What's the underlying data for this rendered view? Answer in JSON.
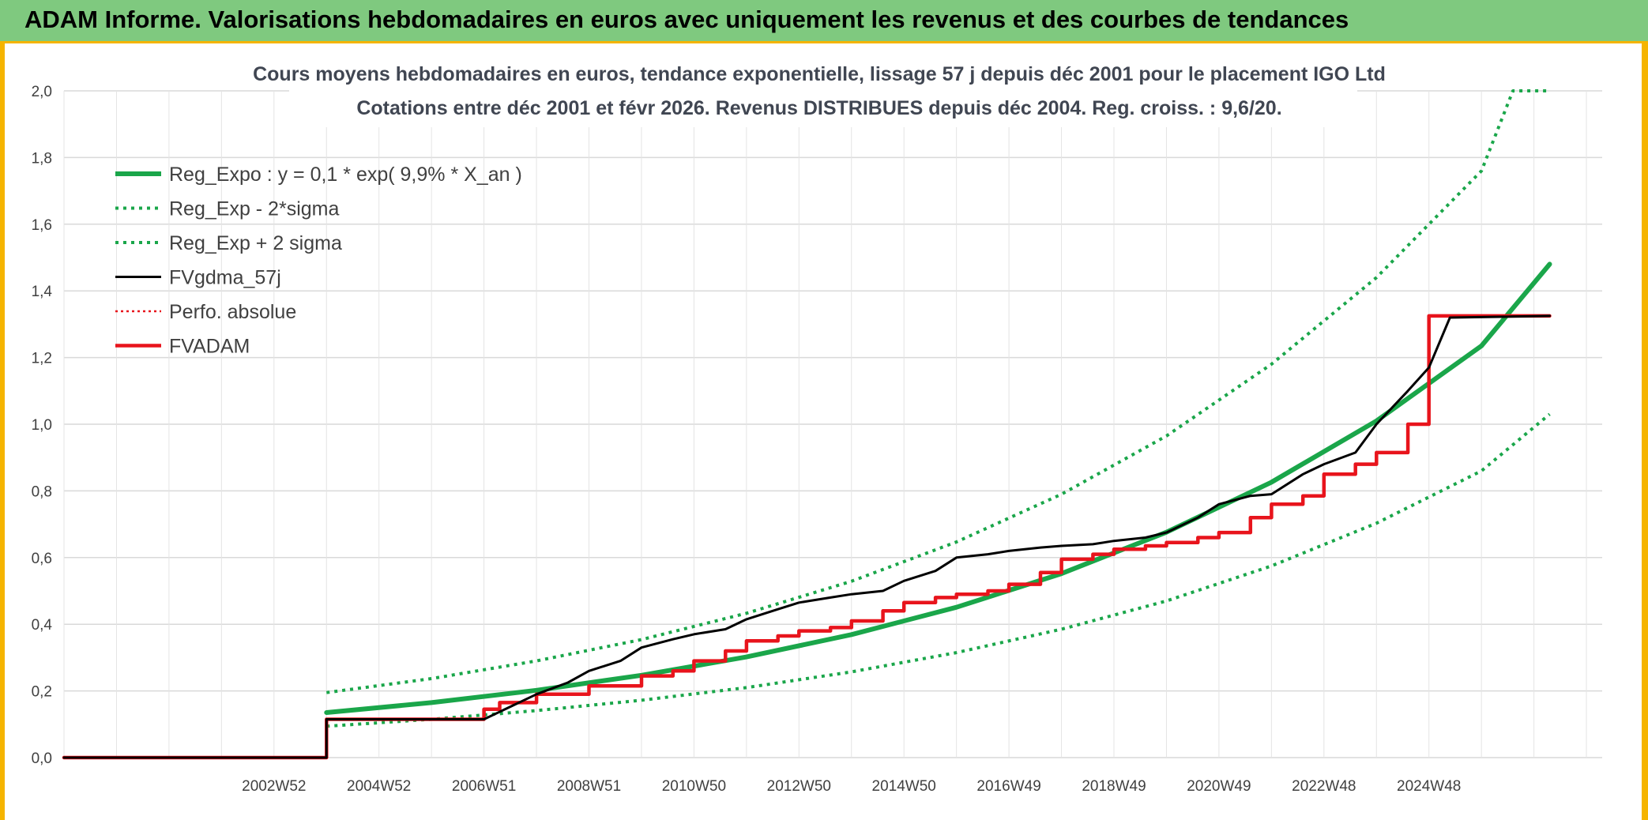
{
  "header": {
    "title": "ADAM Informe. Valorisations hebdomadaires en euros avec uniquement les revenus et des courbes de tendances"
  },
  "colors": {
    "header_bg": "#7fc97f",
    "frame": "#f5b400",
    "trend": "#1aa64a",
    "fvgdma": "#000000",
    "fvadam": "#e8141c",
    "perfo": "#e8141c"
  },
  "chart_data": {
    "type": "line",
    "title": [
      "Cours moyens hebdomadaires en euros, tendance exponentielle, lissage 57 j depuis déc 2001 pour le placement IGO Ltd",
      "Cotations entre déc 2001 et févr 2026. Revenus DISTRIBUES depuis déc 2004. Reg. croiss. : 9,6/20."
    ],
    "xlabel": "",
    "ylabel": "",
    "ylim": [
      0,
      2.0
    ],
    "xlim": [
      1999.0,
      2028.3
    ],
    "grid": true,
    "legend_position": "top-left",
    "y_ticks": [
      "0,0",
      "0,2",
      "0,4",
      "0,6",
      "0,8",
      "1,0",
      "1,2",
      "1,4",
      "1,6",
      "1,8",
      "2,0"
    ],
    "x_ticks": [
      {
        "label": "2002W52",
        "x": 2003.0
      },
      {
        "label": "2004W52",
        "x": 2005.0
      },
      {
        "label": "2006W51",
        "x": 2007.0
      },
      {
        "label": "2008W51",
        "x": 2009.0
      },
      {
        "label": "2010W50",
        "x": 2011.0
      },
      {
        "label": "2012W50",
        "x": 2013.0
      },
      {
        "label": "2014W50",
        "x": 2015.0
      },
      {
        "label": "2016W49",
        "x": 2017.0
      },
      {
        "label": "2018W49",
        "x": 2019.0
      },
      {
        "label": "2020W49",
        "x": 2021.0
      },
      {
        "label": "2022W48",
        "x": 2023.0
      },
      {
        "label": "2024W48",
        "x": 2025.0
      }
    ],
    "series": [
      {
        "name": "Reg_Expo : y = 0,1 * exp( 9,9% *  X_an )",
        "style": "trend",
        "x": [
          2004.0,
          2006.0,
          2008.0,
          2010.0,
          2012.0,
          2014.0,
          2016.0,
          2018.0,
          2020.0,
          2022.0,
          2024.0,
          2026.0,
          2027.3
        ],
        "y": [
          0.135,
          0.165,
          0.202,
          0.247,
          0.302,
          0.369,
          0.451,
          0.552,
          0.676,
          0.826,
          1.01,
          1.235,
          1.48
        ]
      },
      {
        "name": "Reg_Exp - 2*sigma",
        "style": "lower",
        "x": [
          2004.0,
          2006.0,
          2008.0,
          2010.0,
          2012.0,
          2014.0,
          2016.0,
          2018.0,
          2020.0,
          2022.0,
          2024.0,
          2026.0,
          2027.3
        ],
        "y": [
          0.094,
          0.115,
          0.141,
          0.172,
          0.21,
          0.257,
          0.315,
          0.385,
          0.47,
          0.575,
          0.703,
          0.86,
          1.03
        ]
      },
      {
        "name": "Reg_Exp + 2 sigma",
        "style": "upper",
        "x": [
          2004.0,
          2006.0,
          2008.0,
          2010.0,
          2012.0,
          2014.0,
          2016.0,
          2018.0,
          2020.0,
          2022.0,
          2024.0,
          2026.0,
          2026.6,
          2027.3
        ],
        "y": [
          0.195,
          0.237,
          0.29,
          0.354,
          0.433,
          0.529,
          0.647,
          0.79,
          0.965,
          1.18,
          1.44,
          1.76,
          2.0,
          2.0
        ]
      },
      {
        "name": "FVgdma_57j",
        "style": "fvgdma",
        "x": [
          1999.0,
          2004.0,
          2004.0,
          2007.0,
          2007.6,
          2008.0,
          2008.6,
          2009.0,
          2009.6,
          2010.0,
          2010.6,
          2011.0,
          2011.6,
          2012.0,
          2012.6,
          2013.0,
          2013.6,
          2014.0,
          2014.6,
          2015.0,
          2015.6,
          2016.0,
          2016.6,
          2017.0,
          2017.6,
          2018.0,
          2018.6,
          2019.0,
          2019.6,
          2020.0,
          2020.6,
          2021.0,
          2021.6,
          2022.0,
          2022.6,
          2023.0,
          2023.6,
          2024.0,
          2024.6,
          2025.0,
          2025.4,
          2027.3
        ],
        "y": [
          0.0,
          0.0,
          0.115,
          0.115,
          0.16,
          0.19,
          0.225,
          0.26,
          0.29,
          0.33,
          0.355,
          0.37,
          0.385,
          0.415,
          0.445,
          0.465,
          0.48,
          0.49,
          0.5,
          0.53,
          0.56,
          0.6,
          0.61,
          0.62,
          0.63,
          0.635,
          0.64,
          0.65,
          0.66,
          0.675,
          0.72,
          0.76,
          0.785,
          0.79,
          0.85,
          0.88,
          0.915,
          1.0,
          1.1,
          1.17,
          1.32,
          1.325
        ]
      },
      {
        "name": "Perfo. absolue",
        "style": "perfo",
        "x": [],
        "y": []
      },
      {
        "name": "FVADAM",
        "style": "fvadam",
        "x": [
          1999.0,
          2004.0,
          2004.0,
          2007.0,
          2007.0,
          2007.3,
          2007.3,
          2008.0,
          2008.0,
          2009.0,
          2009.0,
          2010.0,
          2010.0,
          2010.6,
          2010.6,
          2011.0,
          2011.0,
          2011.6,
          2011.6,
          2012.0,
          2012.0,
          2012.6,
          2012.6,
          2013.0,
          2013.0,
          2013.6,
          2013.6,
          2014.0,
          2014.0,
          2014.6,
          2014.6,
          2015.0,
          2015.0,
          2015.6,
          2015.6,
          2016.0,
          2016.0,
          2016.6,
          2016.6,
          2017.0,
          2017.0,
          2017.6,
          2017.6,
          2018.0,
          2018.0,
          2018.6,
          2018.6,
          2019.0,
          2019.0,
          2019.6,
          2019.6,
          2020.0,
          2020.0,
          2020.6,
          2020.6,
          2021.0,
          2021.0,
          2021.6,
          2021.6,
          2022.0,
          2022.0,
          2022.6,
          2022.6,
          2023.0,
          2023.0,
          2023.6,
          2023.6,
          2024.0,
          2024.0,
          2024.6,
          2024.6,
          2025.0,
          2025.0,
          2027.3
        ],
        "y": [
          0.0,
          0.0,
          0.115,
          0.115,
          0.145,
          0.145,
          0.165,
          0.165,
          0.19,
          0.19,
          0.215,
          0.215,
          0.245,
          0.245,
          0.26,
          0.26,
          0.29,
          0.29,
          0.32,
          0.32,
          0.35,
          0.35,
          0.365,
          0.365,
          0.38,
          0.38,
          0.39,
          0.39,
          0.41,
          0.41,
          0.44,
          0.44,
          0.465,
          0.465,
          0.48,
          0.48,
          0.49,
          0.49,
          0.5,
          0.5,
          0.52,
          0.52,
          0.555,
          0.555,
          0.595,
          0.595,
          0.61,
          0.61,
          0.625,
          0.625,
          0.635,
          0.635,
          0.645,
          0.645,
          0.66,
          0.66,
          0.675,
          0.675,
          0.72,
          0.72,
          0.76,
          0.76,
          0.785,
          0.785,
          0.85,
          0.85,
          0.88,
          0.88,
          0.915,
          0.915,
          1.0,
          1.0,
          1.325,
          1.325
        ]
      }
    ]
  }
}
